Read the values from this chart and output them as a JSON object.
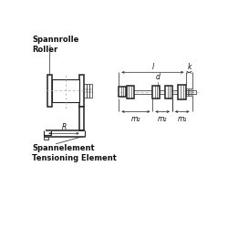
{
  "bg_color": "#ffffff",
  "line_color": "#222222",
  "dash_color": "#888888",
  "text_color": "#111111",
  "label_spannrolle": "Spannrolle\nRoller",
  "label_spannelement": "Spannelement\nTensioning Element",
  "label_R": "R",
  "label_l": "l",
  "label_k": "k",
  "label_d": "d",
  "label_m1": "m₁",
  "label_m2_left": "m₂",
  "label_m2_mid": "m₂",
  "font_size_small": 5.5,
  "font_size_bold": 6.0
}
